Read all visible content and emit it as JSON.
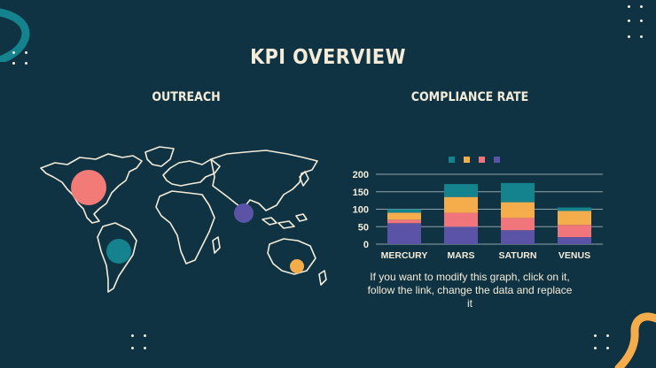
{
  "slide": {
    "title": "KPI OVERVIEW",
    "outreach_heading": "OUTREACH",
    "compliance_heading": "COMPLIANCE RATE",
    "note": "If you want to modify this graph, click on it, follow the link, change the data and replace it"
  },
  "colors": {
    "background": "#0f3342",
    "text": "#f4ecd9",
    "teal": "#14838d",
    "orange": "#f5ad4b",
    "coral": "#f0767b",
    "purple": "#5b53a6",
    "salmon_bubble": "#f27a77",
    "map_outline": "#f4ecd9"
  },
  "chart_data": {
    "type": "bar",
    "stacked": true,
    "categories": [
      "MERCURY",
      "MARS",
      "SATURN",
      "VENUS"
    ],
    "series": [
      {
        "color": "#5b53a6",
        "values": [
          60,
          50,
          40,
          20
        ]
      },
      {
        "color": "#f0767b",
        "values": [
          10,
          40,
          35,
          35
        ]
      },
      {
        "color": "#f5ad4b",
        "values": [
          20,
          45,
          45,
          40
        ]
      },
      {
        "color": "#14838d",
        "values": [
          10,
          37,
          55,
          10
        ]
      }
    ],
    "yticks": [
      0,
      50,
      100,
      150,
      200
    ],
    "ylim": [
      0,
      200
    ],
    "grid": true,
    "legend_position": "top",
    "title": "",
    "xlabel": "",
    "ylabel": ""
  }
}
